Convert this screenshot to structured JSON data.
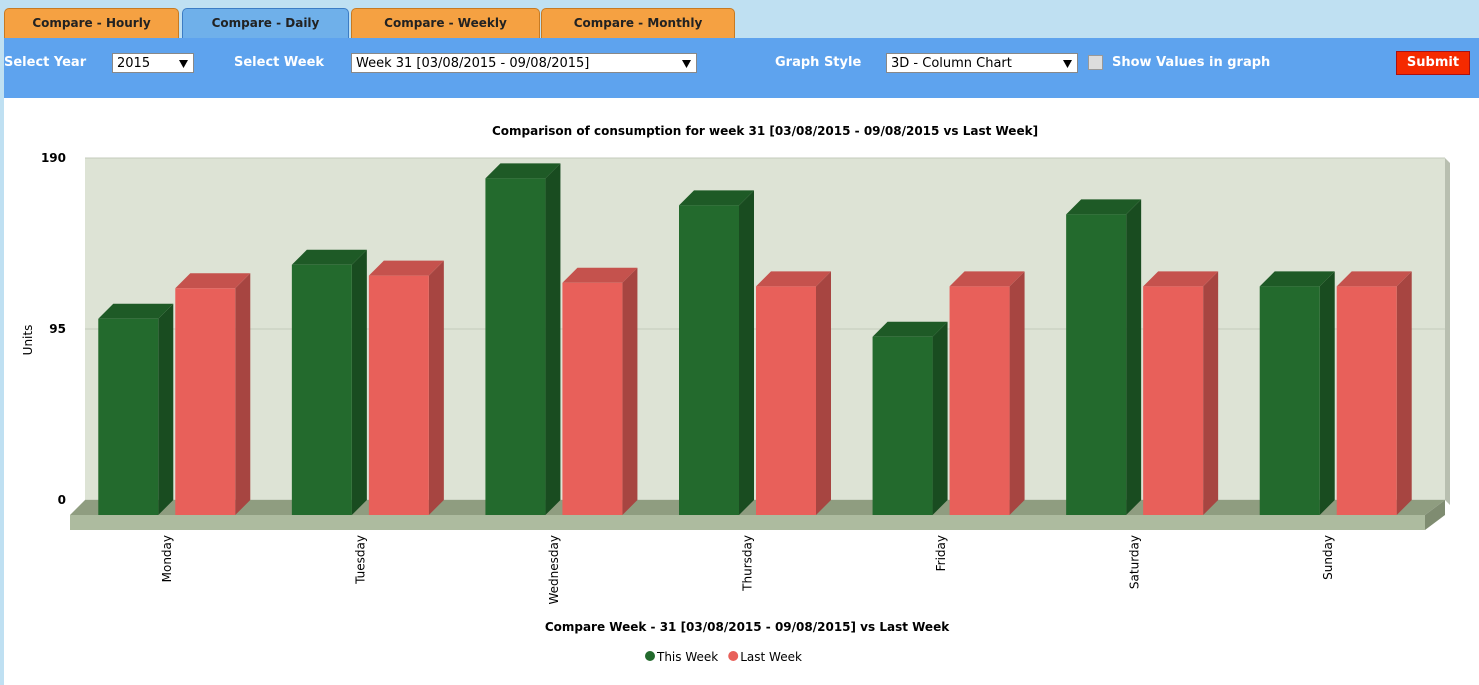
{
  "tabs": [
    "Compare - Hourly",
    "Compare - Daily",
    "Compare - Weekly",
    "Compare - Monthly"
  ],
  "toolbar": {
    "year_label": "Select Year",
    "year": "2015",
    "week_label": "Select Week",
    "week": "Week 31 [03/08/2015 - 09/08/2015]",
    "style_label": "Graph Style",
    "style": "3D - Column Chart",
    "show_values": "Show Values in graph",
    "submit": "Submit"
  },
  "chart_data": {
    "type": "bar3d",
    "title": "Comparison of consumption for week 31 [03/08/2015 - 09/08/2015 vs Last Week]",
    "x_label": "Compare Week - 31 [03/08/2015 - 09/08/2015] vs Last Week",
    "y_label": "Units",
    "categories": [
      "Monday",
      "Tuesday",
      "Wednesday",
      "Thursday",
      "Friday",
      "Saturday",
      "Sunday"
    ],
    "series": [
      {
        "name": "This Week",
        "color": "#236a2d",
        "values": [
          109,
          139,
          187,
          172,
          99,
          167,
          127
        ]
      },
      {
        "name": "Last Week",
        "color": "#e8605a",
        "values": [
          126,
          133,
          129,
          127,
          127,
          127,
          127
        ]
      }
    ],
    "ylim": [
      0,
      190
    ],
    "yticks": [
      0,
      95,
      190
    ],
    "grid": true
  }
}
